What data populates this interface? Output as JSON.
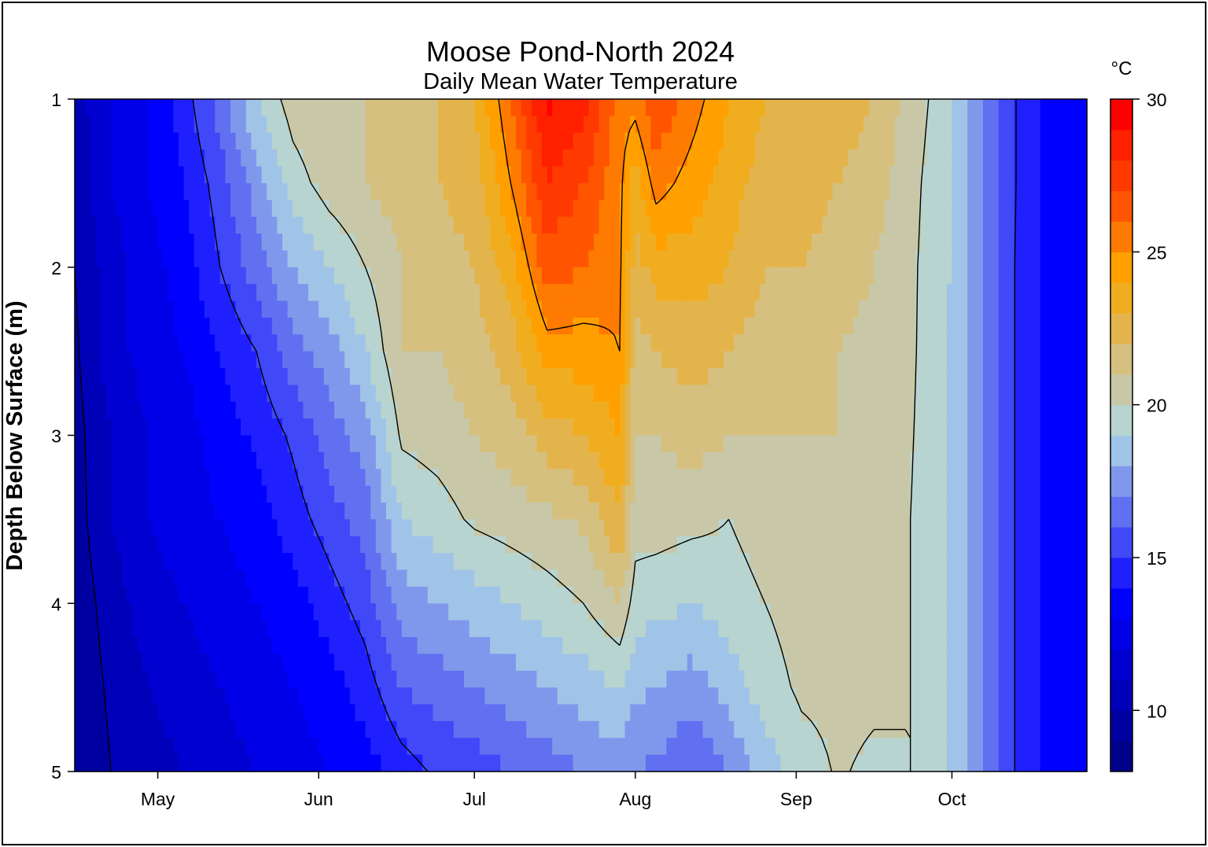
{
  "chart_data": {
    "type": "heatmap",
    "title": "Moose Pond-North 2024",
    "subtitle": "Daily Mean Water Temperature",
    "xlabel": "",
    "ylabel": "Depth Below Surface (m)",
    "colorbar_label": "°C",
    "xlim": [
      "2024-04-15",
      "2024-10-27"
    ],
    "ylim": [
      5,
      1
    ],
    "y_reversed": true,
    "x_ticks": [
      {
        "date": "2024-05-01",
        "label": "May"
      },
      {
        "date": "2024-06-01",
        "label": "Jun"
      },
      {
        "date": "2024-07-01",
        "label": "Jul"
      },
      {
        "date": "2024-08-01",
        "label": "Aug"
      },
      {
        "date": "2024-09-01",
        "label": "Sep"
      },
      {
        "date": "2024-10-01",
        "label": "Oct"
      }
    ],
    "y_ticks": [
      1,
      2,
      3,
      4,
      5
    ],
    "colorbar_ticks": [
      10,
      15,
      20,
      25,
      30
    ],
    "color_range": [
      8,
      30
    ],
    "level_step": 1,
    "contour_levels": [
      10,
      15,
      20,
      25
    ],
    "band_colors": [
      "#000088",
      "#0000a0",
      "#0000b8",
      "#0000d0",
      "#0000e8",
      "#0000ff",
      "#2020ff",
      "#4048f8",
      "#6070f0",
      "#8098ec",
      "#a0c4e8",
      "#b8d4d0",
      "#c8c8a8",
      "#d6c080",
      "#e4b44c",
      "#f0ad20",
      "#ffa000",
      "#ff7a00",
      "#ff5500",
      "#ff3a00",
      "#ff2000",
      "#ff0000"
    ],
    "depths": [
      1,
      1.5,
      2,
      2.5,
      3,
      3.5,
      4,
      4.5,
      5
    ],
    "dates": [
      "2024-04-15",
      "2024-04-22",
      "2024-04-29",
      "2024-05-06",
      "2024-05-13",
      "2024-05-20",
      "2024-05-27",
      "2024-06-03",
      "2024-06-10",
      "2024-06-17",
      "2024-06-24",
      "2024-07-01",
      "2024-07-08",
      "2024-07-15",
      "2024-07-22",
      "2024-07-29",
      "2024-08-01",
      "2024-08-05",
      "2024-08-12",
      "2024-08-19",
      "2024-08-26",
      "2024-09-02",
      "2024-09-09",
      "2024-09-16",
      "2024-09-23",
      "2024-09-30",
      "2024-10-07",
      "2024-10-14",
      "2024-10-21",
      "2024-10-27"
    ],
    "temperature": [
      [
        10.5,
        10.3,
        10.0,
        9.8,
        9.6,
        9.5,
        9.3,
        9.2,
        9.0
      ],
      [
        12.0,
        12.0,
        11.5,
        11.5,
        11.0,
        11.0,
        10.5,
        10.2,
        10.0
      ],
      [
        13.0,
        13.0,
        12.5,
        12.5,
        12.0,
        12.0,
        11.5,
        11.0,
        10.5
      ],
      [
        14.5,
        14.0,
        13.5,
        13.0,
        12.5,
        12.5,
        12.0,
        11.5,
        11.0
      ],
      [
        16.5,
        15.5,
        15.0,
        14.0,
        13.5,
        13.0,
        12.5,
        12.0,
        11.5
      ],
      [
        19.0,
        17.5,
        16.5,
        15.0,
        14.2,
        13.5,
        13.0,
        12.5,
        12.0
      ],
      [
        20.5,
        19.5,
        18.0,
        16.5,
        15.2,
        14.5,
        13.5,
        13.0,
        12.5
      ],
      [
        21.0,
        20.5,
        19.0,
        17.5,
        16.5,
        15.5,
        14.5,
        13.5,
        13.0
      ],
      [
        21.0,
        21.0,
        20.0,
        19.0,
        17.5,
        16.5,
        15.5,
        14.5,
        13.5
      ],
      [
        21.5,
        21.5,
        21.0,
        21.0,
        20.2,
        19.0,
        17.5,
        16.0,
        14.5
      ],
      [
        22.0,
        22.0,
        21.5,
        21.0,
        20.5,
        19.5,
        18.0,
        16.5,
        15.2
      ],
      [
        23.0,
        22.5,
        22.0,
        21.5,
        21.0,
        20.2,
        18.5,
        17.0,
        15.5
      ],
      [
        26.0,
        25.0,
        23.5,
        22.5,
        21.5,
        20.5,
        19.0,
        17.5,
        16.0
      ],
      [
        29.3,
        28.0,
        26.5,
        24.5,
        22.5,
        20.8,
        19.5,
        18.0,
        16.5
      ],
      [
        28.5,
        27.0,
        26.0,
        24.5,
        23.0,
        21.2,
        20.0,
        18.5,
        17.0
      ],
      [
        25.5,
        25.3,
        25.2,
        25.0,
        24.0,
        23.0,
        21.0,
        19.0,
        17.5
      ],
      [
        25.5,
        23.5,
        22.5,
        21.5,
        21.0,
        20.5,
        19.5,
        18.2,
        17.0
      ],
      [
        27.0,
        25.5,
        23.5,
        22.0,
        21.0,
        20.5,
        19.3,
        18.0,
        16.8
      ],
      [
        25.5,
        24.5,
        23.5,
        22.5,
        21.5,
        20.3,
        19.0,
        17.5,
        16.0
      ],
      [
        24.0,
        23.5,
        23.0,
        22.0,
        21.0,
        20.0,
        19.5,
        18.5,
        17.0
      ],
      [
        23.0,
        22.5,
        22.0,
        21.5,
        21.0,
        20.5,
        20.0,
        19.5,
        18.5
      ],
      [
        23.0,
        22.5,
        22.0,
        21.5,
        21.0,
        20.8,
        20.5,
        20.2,
        19.5
      ],
      [
        22.5,
        22.0,
        21.5,
        21.0,
        21.0,
        20.8,
        20.6,
        20.3,
        20.1
      ],
      [
        22.0,
        21.5,
        21.0,
        20.7,
        20.5,
        20.4,
        20.3,
        20.2,
        19.8
      ],
      [
        20.5,
        20.3,
        20.2,
        20.2,
        20.1,
        20.0,
        20.0,
        20.0,
        20.0
      ],
      [
        19.5,
        19.3,
        19.2,
        19.0,
        19.0,
        19.0,
        19.0,
        19.0,
        19.0
      ],
      [
        17.0,
        17.0,
        17.0,
        17.0,
        17.0,
        17.0,
        17.0,
        17.0,
        17.0
      ],
      [
        14.8,
        14.8,
        14.7,
        14.7,
        14.7,
        14.7,
        14.7,
        14.7,
        14.7
      ],
      [
        13.5,
        13.5,
        13.5,
        13.5,
        13.5,
        13.5,
        13.5,
        13.5,
        13.5
      ],
      [
        13.0,
        13.0,
        13.0,
        13.0,
        13.0,
        13.0,
        13.0,
        13.0,
        13.0
      ]
    ]
  }
}
